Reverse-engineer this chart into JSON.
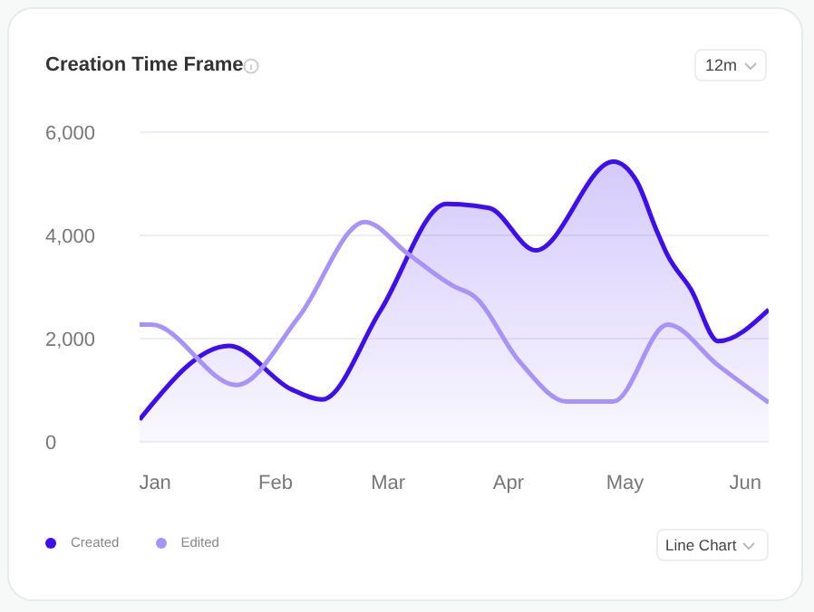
{
  "chart_data": {
    "type": "line",
    "title": "Creation Time Frame",
    "annotations": [
      "12m",
      "Line Chart"
    ],
    "xlim": [
      "--01-11",
      "--06-21"
    ],
    "xticks": [
      {
        "value": "--01-15",
        "label": "Jan"
      },
      {
        "value": "--02-15",
        "label": "Feb"
      },
      {
        "value": "--03-15",
        "label": "Mar"
      },
      {
        "value": "--04-15",
        "label": "Apr"
      },
      {
        "value": "--05-15",
        "label": "May"
      },
      {
        "value": "--06-15",
        "label": "Jun"
      }
    ],
    "ylim": [
      0,
      6000
    ],
    "yticks": [
      0,
      {
        "value": 2000,
        "label": "2,000"
      },
      {
        "value": 4000,
        "label": "4,000"
      },
      {
        "value": 6000,
        "label": "6,000"
      }
    ],
    "grid": "y",
    "legend": "bottom",
    "marker": "none",
    "line_style": "solid",
    "series": [
      {
        "name": "Created",
        "type": "area",
        "color": "#3d0ef0",
        "x": [
          "--01-11",
          "--02-03",
          "--02-19",
          "--02-27",
          "--03-13",
          "--03-30",
          "--04-10",
          "--04-22",
          "--05-12",
          "--05-18",
          "--05-23",
          "--05-26",
          "--06-01",
          "--06-08",
          "--06-21"
        ],
        "values": [
          430,
          1860,
          1020,
          820,
          2540,
          4610,
          4530,
          3710,
          5430,
          5050,
          4120,
          3610,
          2950,
          1950,
          2560
        ]
      },
      {
        "name": "Edited",
        "color": "#a894f7",
        "x": [
          "--01-11",
          "--01-14",
          "--02-05",
          "--02-21",
          "--03-09",
          "--03-20",
          "--04-01",
          "--04-06",
          "--04-18",
          "--04-30",
          "--05-12",
          "--05-26",
          "--06-08",
          "--06-21"
        ],
        "values": [
          2270,
          2270,
          1100,
          2420,
          4260,
          3650,
          3010,
          2830,
          1540,
          780,
          780,
          2270,
          1480,
          760
        ]
      }
    ]
  }
}
